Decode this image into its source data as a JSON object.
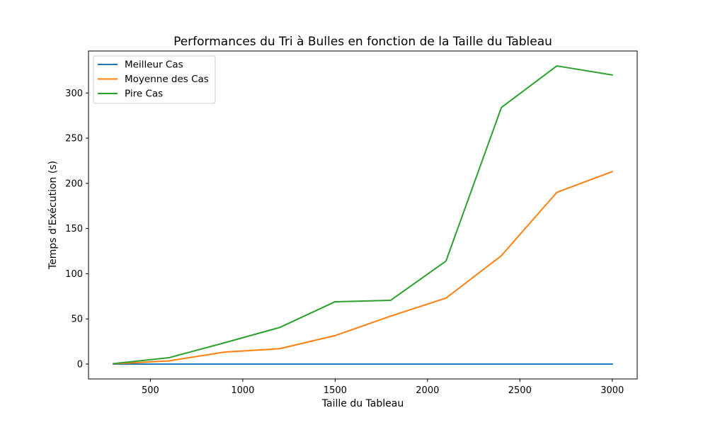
{
  "chart_data": {
    "type": "line",
    "title": "Performances du Tri à Bulles en fonction de la Taille du Tableau",
    "xlabel": "Taille du Tableau",
    "ylabel": "Temps d'Exécution (s)",
    "x": [
      300,
      600,
      900,
      1200,
      1500,
      1800,
      2100,
      2400,
      2700,
      3000
    ],
    "xlim": [
      165,
      3135
    ],
    "ylim": [
      -16.5,
      346.5
    ],
    "xticks": [
      500,
      1000,
      1500,
      2000,
      2500,
      3000
    ],
    "yticks": [
      0,
      50,
      100,
      150,
      200,
      250,
      300
    ],
    "grid": false,
    "legend_position": "top-left",
    "series": [
      {
        "name": "Meilleur Cas",
        "color": "#1f77b4",
        "values": [
          0.0,
          0.0,
          0.0,
          0.0,
          0.0,
          0.0,
          0.0,
          0.0,
          0.0,
          0.0
        ]
      },
      {
        "name": "Moyenne des Cas",
        "color": "#ff7f0e",
        "values": [
          0.3,
          3.5,
          13.2,
          17.0,
          31.5,
          53.0,
          73.0,
          120.0,
          190.0,
          213.0
        ]
      },
      {
        "name": "Pire Cas",
        "color": "#2ca02c",
        "values": [
          0.5,
          7.0,
          23.5,
          40.5,
          69.0,
          70.5,
          114.0,
          284.0,
          330.0,
          320.0
        ]
      }
    ]
  }
}
